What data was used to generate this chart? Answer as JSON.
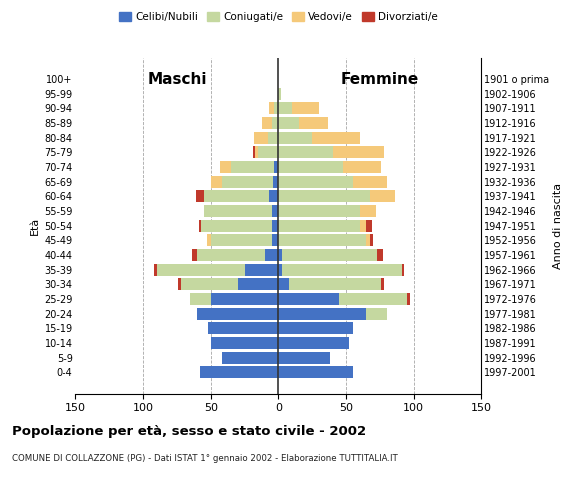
{
  "age_groups": [
    "0-4",
    "5-9",
    "10-14",
    "15-19",
    "20-24",
    "25-29",
    "30-34",
    "35-39",
    "40-44",
    "45-49",
    "50-54",
    "55-59",
    "60-64",
    "65-69",
    "70-74",
    "75-79",
    "80-84",
    "85-89",
    "90-94",
    "95-99",
    "100+"
  ],
  "birth_years": [
    "1997-2001",
    "1992-1996",
    "1987-1991",
    "1982-1986",
    "1977-1981",
    "1972-1976",
    "1967-1971",
    "1962-1966",
    "1957-1961",
    "1952-1956",
    "1947-1951",
    "1942-1946",
    "1937-1941",
    "1932-1936",
    "1927-1931",
    "1922-1926",
    "1917-1921",
    "1912-1916",
    "1907-1911",
    "1902-1906",
    "1901 o prima"
  ],
  "males_celibi": [
    58,
    42,
    50,
    52,
    60,
    50,
    30,
    25,
    10,
    5,
    5,
    5,
    7,
    4,
    3,
    0,
    0,
    0,
    0,
    0,
    0
  ],
  "males_coniugati": [
    0,
    0,
    0,
    0,
    0,
    15,
    42,
    65,
    50,
    45,
    52,
    50,
    48,
    38,
    32,
    15,
    8,
    5,
    3,
    0,
    0
  ],
  "males_vedovi": [
    0,
    0,
    0,
    0,
    0,
    0,
    0,
    0,
    0,
    3,
    0,
    0,
    0,
    8,
    8,
    2,
    10,
    7,
    4,
    0,
    0
  ],
  "males_divorziati": [
    0,
    0,
    0,
    0,
    0,
    0,
    2,
    2,
    4,
    0,
    2,
    0,
    6,
    0,
    0,
    2,
    0,
    0,
    0,
    0,
    0
  ],
  "females_nubili": [
    55,
    38,
    52,
    55,
    65,
    45,
    8,
    3,
    3,
    0,
    0,
    0,
    0,
    0,
    0,
    0,
    0,
    0,
    0,
    0,
    0
  ],
  "females_coniugate": [
    0,
    0,
    0,
    0,
    15,
    50,
    68,
    88,
    70,
    65,
    60,
    60,
    68,
    55,
    48,
    40,
    25,
    15,
    10,
    2,
    0
  ],
  "females_vedove": [
    0,
    0,
    0,
    0,
    0,
    0,
    0,
    0,
    0,
    3,
    5,
    12,
    18,
    25,
    28,
    38,
    35,
    22,
    20,
    0,
    0
  ],
  "females_divorziate": [
    0,
    0,
    0,
    0,
    0,
    2,
    2,
    2,
    4,
    2,
    4,
    0,
    0,
    0,
    0,
    0,
    0,
    0,
    0,
    0,
    0
  ],
  "colors": {
    "celibi": "#4472C4",
    "coniugati": "#C5D8A0",
    "vedovi": "#F5C97A",
    "divorziati": "#C0392B"
  },
  "title": "Popolazione per età, sesso e stato civile - 2002",
  "subtitle": "COMUNE DI COLLAZZONE (PG) - Dati ISTAT 1° gennaio 2002 - Elaborazione TUTTITALIA.IT",
  "label_maschi": "Maschi",
  "label_femmine": "Femmine",
  "ylabel_left": "Età",
  "ylabel_right": "Anno di nascita",
  "xlim": 150,
  "background_color": "#ffffff"
}
